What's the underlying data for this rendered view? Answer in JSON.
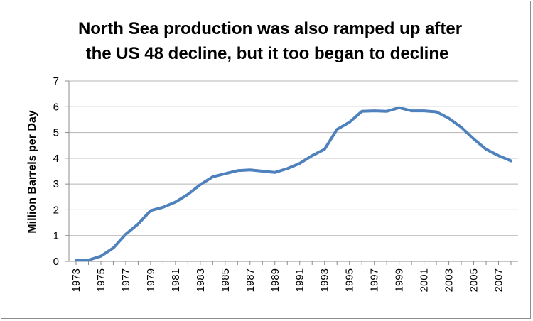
{
  "chart_data": {
    "type": "line",
    "title_lines": [
      "North Sea production was also ramped up after",
      "the US 48 decline, but it too began to decline"
    ],
    "xlabel": "",
    "ylabel": "Million Barrels  per  Day",
    "ylim": [
      0,
      7
    ],
    "yticks": [
      0,
      1,
      2,
      3,
      4,
      5,
      6,
      7
    ],
    "grid": true,
    "legend": "none",
    "x_tick_labels": [
      "1973",
      "1975",
      "1977",
      "1979",
      "1981",
      "1983",
      "1985",
      "1987",
      "1989",
      "1991",
      "1993",
      "1995",
      "1997",
      "1999",
      "2001",
      "2003",
      "2005",
      "2007"
    ],
    "series": [
      {
        "name": "North Sea production",
        "color": "#4f81bd",
        "x": [
          1973,
          1974,
          1975,
          1976,
          1977,
          1978,
          1979,
          1980,
          1981,
          1982,
          1983,
          1984,
          1985,
          1986,
          1987,
          1988,
          1989,
          1990,
          1991,
          1992,
          1993,
          1994,
          1995,
          1996,
          1997,
          1998,
          1999,
          2000,
          2001,
          2002,
          2003,
          2004,
          2005,
          2006,
          2007,
          2008
        ],
        "values": [
          0.05,
          0.05,
          0.2,
          0.52,
          1.05,
          1.45,
          1.97,
          2.1,
          2.3,
          2.6,
          2.98,
          3.28,
          3.4,
          3.52,
          3.55,
          3.5,
          3.45,
          3.6,
          3.8,
          4.1,
          4.35,
          5.12,
          5.4,
          5.82,
          5.84,
          5.82,
          5.96,
          5.84,
          5.84,
          5.8,
          5.55,
          5.2,
          4.75,
          4.35,
          4.1,
          3.9
        ]
      }
    ]
  }
}
